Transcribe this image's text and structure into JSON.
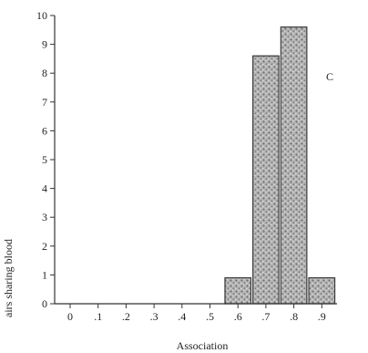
{
  "chart_data": {
    "type": "bar",
    "panel_label": "C",
    "xlabel": "Association",
    "ylabel": "airs sharing blood",
    "categories": [
      "0",
      ".1",
      ".2",
      ".3",
      ".4",
      ".5",
      ".6",
      ".7",
      ".8",
      ".9"
    ],
    "values": [
      0,
      0,
      0,
      0,
      0,
      0,
      0.9,
      8.6,
      9.6,
      0.9
    ],
    "x_tick_labels": [
      "0",
      ".1",
      ".2",
      ".3",
      ".4",
      ".5",
      ".6",
      ".7",
      ".8",
      ".9"
    ],
    "y_tick_labels": [
      "0",
      "1",
      "2",
      "3",
      "4",
      "5",
      "6",
      "7",
      "8",
      "9",
      "10"
    ],
    "ylim": [
      0,
      10
    ],
    "grid": false,
    "colors": {
      "bar_fill": "#a9a9a9",
      "bar_stroke": "#3a3a3a",
      "axis": "#333333",
      "background": "#ffffff"
    }
  }
}
